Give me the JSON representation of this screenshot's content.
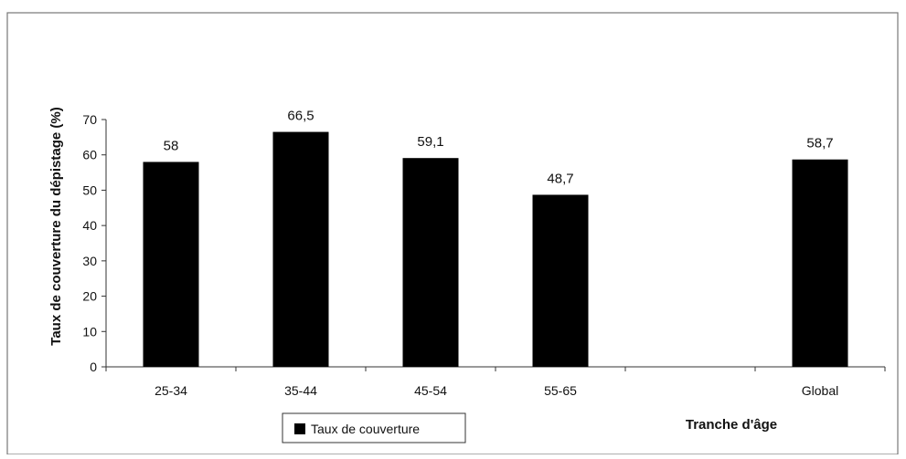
{
  "chart_data": {
    "type": "bar",
    "categories": [
      "25-34",
      "35-44",
      "45-54",
      "55-65",
      "",
      "Global"
    ],
    "series": [
      {
        "name": "Taux de couverture",
        "values": [
          58,
          66.5,
          59.1,
          48.7,
          null,
          58.7
        ],
        "data_labels": [
          "58",
          "66,5",
          "59,1",
          "48,7",
          "",
          "58,7"
        ]
      }
    ],
    "xlabel": "Tranche d'âge",
    "ylabel": "Taux de couverture du dépistage (%)",
    "ylim": [
      0,
      70
    ],
    "yticks": [
      0,
      10,
      20,
      30,
      40,
      50,
      60,
      70
    ],
    "grid": false,
    "legend": {
      "position": "bottom-left",
      "entries": [
        "Taux de couverture"
      ]
    },
    "colors": {
      "bar": "#000000",
      "axis": "#333333",
      "frame": "#777777"
    }
  }
}
